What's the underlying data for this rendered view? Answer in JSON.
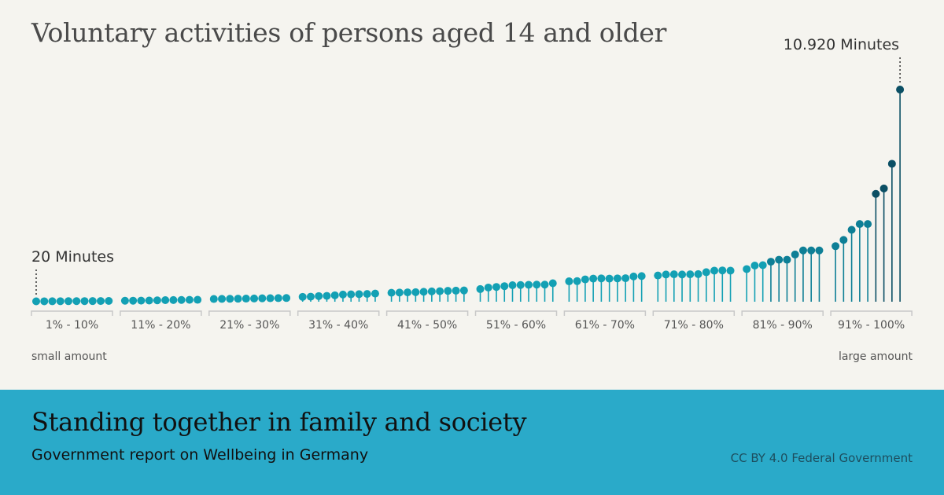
{
  "chart_data": {
    "type": "lollipop",
    "title": "Voluntary activities of persons aged 14 and older",
    "unit": "Minutes",
    "categories": [
      "1% - 10%",
      "11% - 20%",
      "21% - 30%",
      "31% - 40%",
      "41% - 50%",
      "51% - 60%",
      "61% - 70%",
      "71% - 80%",
      "81% - 90%",
      "91% - 100%"
    ],
    "groups": [
      [
        20,
        22,
        24,
        26,
        28,
        30,
        32,
        34,
        36,
        40
      ],
      [
        50,
        52,
        56,
        60,
        70,
        80,
        85,
        90,
        95,
        100
      ],
      [
        140,
        145,
        150,
        155,
        160,
        165,
        175,
        180,
        185,
        190
      ],
      [
        250,
        260,
        290,
        300,
        330,
        370,
        380,
        390,
        400,
        420
      ],
      [
        460,
        470,
        480,
        490,
        510,
        530,
        540,
        560,
        570,
        580
      ],
      [
        650,
        730,
        760,
        800,
        850,
        860,
        870,
        880,
        880,
        950
      ],
      [
        1050,
        1060,
        1150,
        1190,
        1200,
        1190,
        1200,
        1210,
        1300,
        1320
      ],
      [
        1350,
        1400,
        1410,
        1400,
        1410,
        1420,
        1520,
        1600,
        1610,
        1600
      ],
      [
        1680,
        1860,
        1880,
        2060,
        2160,
        2160,
        2430,
        2640,
        2640,
        2640
      ],
      [
        2860,
        3180,
        3700,
        4000,
        4000,
        5550,
        5830,
        7100,
        10920
      ]
    ],
    "ylim": [
      0,
      10920
    ],
    "min_label": "20 Minutes",
    "max_label": "10.920 Minutes",
    "x_start_label": "small amount",
    "x_end_label": "large amount",
    "colors": {
      "light": "#13a0b4",
      "mid": "#0e7f96",
      "dark": "#0b4f64",
      "axis": "#c8c8c8",
      "text": "#555555"
    }
  },
  "footer": {
    "title": "Standing together in family and society",
    "subtitle": "Government report on Wellbeing in Germany",
    "credit": "CC BY 4.0 Federal Government"
  }
}
